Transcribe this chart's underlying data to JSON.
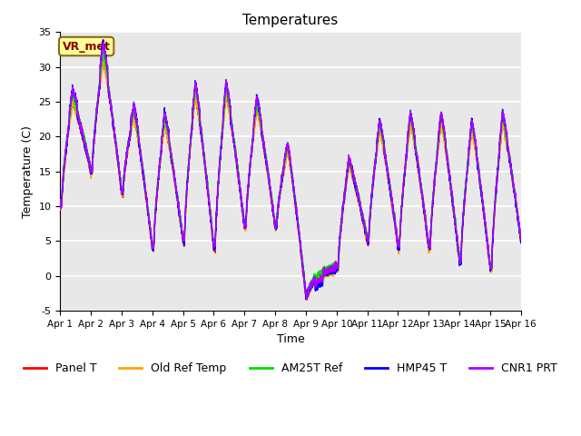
{
  "title": "Temperatures",
  "xlabel": "Time",
  "ylabel": "Temperature (C)",
  "ylim": [
    -5,
    35
  ],
  "xlim": [
    0,
    15
  ],
  "plot_bg": "#e8e8e8",
  "fig_bg": "#ffffff",
  "grid_color": "#ffffff",
  "annotation_text": "VR_met",
  "annotation_bg": "#ffff99",
  "annotation_border": "#8B6914",
  "x_ticks": [
    0,
    1,
    2,
    3,
    4,
    5,
    6,
    7,
    8,
    9,
    10,
    11,
    12,
    13,
    14,
    15
  ],
  "x_tick_labels": [
    "Apr 1",
    "Apr 2",
    "Apr 3",
    "Apr 4",
    "Apr 5",
    "Apr 6",
    "Apr 7",
    "Apr 8",
    "Apr 9",
    "Apr 10",
    "Apr 11",
    "Apr 12",
    "Apr 13",
    "Apr 14",
    "Apr 15",
    "Apr 16"
  ],
  "y_ticks": [
    -5,
    0,
    5,
    10,
    15,
    20,
    25,
    30,
    35
  ],
  "series": {
    "Panel_T": {
      "color": "#ff0000",
      "label": "Panel T",
      "lw": 1.0
    },
    "Old_Ref": {
      "color": "#ffa500",
      "label": "Old Ref Temp",
      "lw": 1.0
    },
    "AM25T": {
      "color": "#00dd00",
      "label": "AM25T Ref",
      "lw": 1.0
    },
    "HMP45": {
      "color": "#0000ff",
      "label": "HMP45 T",
      "lw": 1.0
    },
    "CNR1": {
      "color": "#aa00ff",
      "label": "CNR1 PRT",
      "lw": 1.0
    }
  },
  "legend_fontsize": 9,
  "title_fontsize": 11,
  "day_peaks": [
    25,
    31,
    23,
    22,
    26,
    26,
    24,
    18,
    0,
    16,
    21,
    22,
    22,
    21,
    22,
    16
  ],
  "day_troughs": [
    10,
    15,
    12,
    4,
    5,
    4,
    7,
    7,
    -3,
    1,
    5,
    4,
    4,
    2,
    1,
    5
  ]
}
